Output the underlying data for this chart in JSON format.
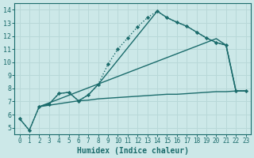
{
  "xlabel": "Humidex (Indice chaleur)",
  "bg_color": "#cce8e8",
  "grid_color": "#b8d8d8",
  "line_color": "#1a6b6b",
  "xlim": [
    -0.5,
    23.5
  ],
  "ylim": [
    4.5,
    14.5
  ],
  "xticks": [
    0,
    1,
    2,
    3,
    4,
    5,
    6,
    7,
    8,
    9,
    10,
    11,
    12,
    13,
    14,
    15,
    16,
    17,
    18,
    19,
    20,
    21,
    22,
    23
  ],
  "yticks": [
    5,
    6,
    7,
    8,
    9,
    10,
    11,
    12,
    13,
    14
  ],
  "line_dotted": {
    "x": [
      0,
      1,
      2,
      3,
      4,
      5,
      6,
      7,
      8,
      9,
      10,
      11,
      12,
      13,
      14,
      15,
      16,
      17,
      18,
      19,
      20,
      21,
      22,
      23
    ],
    "y": [
      5.7,
      4.8,
      6.6,
      6.8,
      7.6,
      7.7,
      7.05,
      7.5,
      8.3,
      9.85,
      11.0,
      11.85,
      12.7,
      13.4,
      13.9,
      13.4,
      13.05,
      12.75,
      12.3,
      11.85,
      11.5,
      11.3,
      7.8,
      7.8
    ]
  },
  "line_straight": {
    "x": [
      2,
      20,
      21,
      22,
      23
    ],
    "y": [
      6.6,
      11.8,
      11.3,
      7.8,
      7.8
    ]
  },
  "line_flat": {
    "x": [
      0,
      1,
      2,
      6,
      7,
      8,
      9,
      10,
      11,
      12,
      13,
      14,
      15,
      16,
      17,
      18,
      19,
      20,
      21,
      22,
      23
    ],
    "y": [
      5.7,
      4.8,
      6.6,
      7.05,
      7.1,
      7.2,
      7.25,
      7.3,
      7.35,
      7.4,
      7.45,
      7.5,
      7.55,
      7.55,
      7.6,
      7.65,
      7.7,
      7.75,
      7.75,
      7.8,
      7.8
    ]
  },
  "line_peak": {
    "x": [
      2,
      3,
      4,
      5,
      6,
      7,
      8,
      14,
      15,
      16,
      17,
      18,
      19,
      20,
      21,
      22,
      23
    ],
    "y": [
      6.6,
      6.8,
      7.6,
      7.7,
      7.05,
      7.5,
      8.3,
      13.9,
      13.4,
      13.05,
      12.75,
      12.3,
      11.85,
      11.5,
      11.3,
      7.8,
      7.8
    ]
  }
}
